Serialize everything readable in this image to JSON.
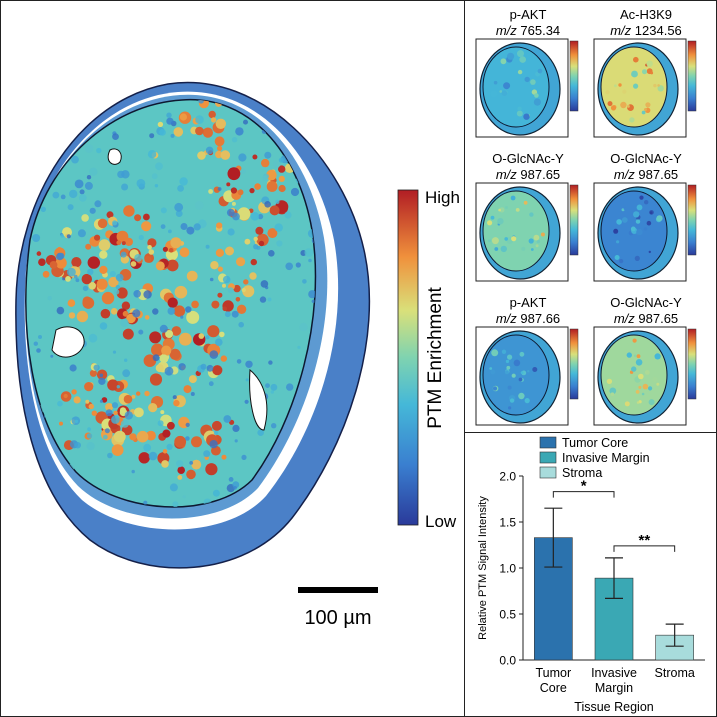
{
  "main_panel": {
    "colorbar": {
      "high_label": "High",
      "low_label": "Low",
      "title": "PTM Enrichment"
    },
    "scale_bar_label": "100 µm"
  },
  "thumbnails": [
    {
      "name": "p-AKT",
      "mz_prefix": "m/z",
      "mz_value": "765.34",
      "level": 0.35
    },
    {
      "name": "Ac-H3K9",
      "mz_prefix": "m/z",
      "mz_value": "1234.56",
      "level": 0.65
    },
    {
      "name": "O-GlcNAc-Y",
      "mz_prefix": "m/z",
      "mz_value": "987.65",
      "level": 0.5
    },
    {
      "name": "O-GlcNAc-Y",
      "mz_prefix": "m/z",
      "mz_value": "987.65",
      "level": 0.2
    },
    {
      "name": "p-AKT",
      "mz_prefix": "m/z",
      "mz_value": "987.66",
      "level": 0.25
    },
    {
      "name": "O-GlcNAc-Y",
      "mz_prefix": "m/z",
      "mz_value": "987.65",
      "level": 0.55
    }
  ],
  "chart_data": {
    "type": "bar",
    "categories": [
      "Tumor Core",
      "Invasive Margin",
      "Stroma"
    ],
    "category_tick_lines": [
      [
        "Tumor",
        "Core"
      ],
      [
        "Invasive",
        "Margin"
      ],
      [
        "Stroma"
      ]
    ],
    "values": [
      1.33,
      0.89,
      0.27
    ],
    "errors": [
      0.32,
      0.22,
      0.12
    ],
    "colors": [
      "#2b72ad",
      "#3aa8b4",
      "#a8dcdc"
    ],
    "legend": [
      "Tumor Core",
      "Invasive Margin",
      "Stroma"
    ],
    "legend_placement": "top",
    "xlabel": "Tissue Region",
    "ylabel": "Relative PTM Signal Intensity",
    "ylim": [
      0,
      2.0
    ],
    "yticks": [
      "0.0",
      "0.5",
      "1.0",
      "1.5",
      "2.0"
    ],
    "grid": false,
    "significance": [
      {
        "from": "Tumor Core",
        "to": "Invasive Margin",
        "label": "*"
      },
      {
        "from": "Invasive Margin",
        "to": "Stroma",
        "label": "**"
      }
    ]
  }
}
